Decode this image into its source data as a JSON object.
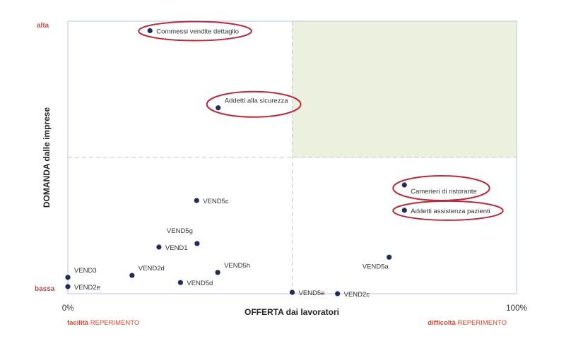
{
  "chart_data": {
    "type": "scatter",
    "xlabel": "OFFERTA dai lavoratori",
    "ylabel": "DOMANDA dalle imprese",
    "xlim": [
      0,
      100
    ],
    "ylim": [
      0,
      100
    ],
    "x_ticks": [
      "0%",
      "100%"
    ],
    "y_ticks": [
      "bassa",
      "alta"
    ],
    "highlight_quadrant": "top-right",
    "highlight_color": "#ebf1de",
    "point_color": "#1f2d5a",
    "ellipse_color": "#c0283a",
    "footer_left": {
      "bold": "facilità",
      "normal": " REPERIMENTO"
    },
    "footer_right": {
      "bold": "difficoltà",
      "normal": " REPERIMENTO"
    },
    "points": [
      {
        "label": "Commessi vendite dettaglio",
        "x": 18.3,
        "y": 96.5,
        "highlight": true,
        "label_pos": "right"
      },
      {
        "label": "Addetti alla sicurezza",
        "x": 33.5,
        "y": 68.2,
        "highlight": true,
        "label_pos": "above-right"
      },
      {
        "label": "Camerieri di ristorante",
        "x": 75.0,
        "y": 39.9,
        "highlight": true,
        "label_pos": "below-right"
      },
      {
        "label": "Addetti assistenza pazienti",
        "x": 75.0,
        "y": 30.6,
        "highlight": true,
        "label_pos": "right"
      },
      {
        "label": "VEND5c",
        "x": 28.7,
        "y": 34.2,
        "label_pos": "right"
      },
      {
        "label": "VEND5g",
        "x": 28.8,
        "y": 18.4,
        "label_pos": "above-left"
      },
      {
        "label": "VEND1",
        "x": 20.3,
        "y": 17.1,
        "label_pos": "right"
      },
      {
        "label": "VEND2d",
        "x": 14.3,
        "y": 6.7,
        "label_pos": "above-right"
      },
      {
        "label": "VEND5h",
        "x": 33.4,
        "y": 7.8,
        "label_pos": "above-right"
      },
      {
        "label": "VEND5d",
        "x": 25.1,
        "y": 4.1,
        "label_pos": "right"
      },
      {
        "label": "VEND3",
        "x": 0.0,
        "y": 6.0,
        "label_pos": "above-right"
      },
      {
        "label": "VEND2e",
        "x": 0.0,
        "y": 2.6,
        "label_pos": "right"
      },
      {
        "label": "VEND5e",
        "x": 50.0,
        "y": 0.5,
        "label_pos": "right"
      },
      {
        "label": "VEND2c",
        "x": 60.1,
        "y": 0.0,
        "label_pos": "right"
      },
      {
        "label": "VEND5a",
        "x": 71.6,
        "y": 13.4,
        "label_pos": "below-left"
      }
    ]
  }
}
